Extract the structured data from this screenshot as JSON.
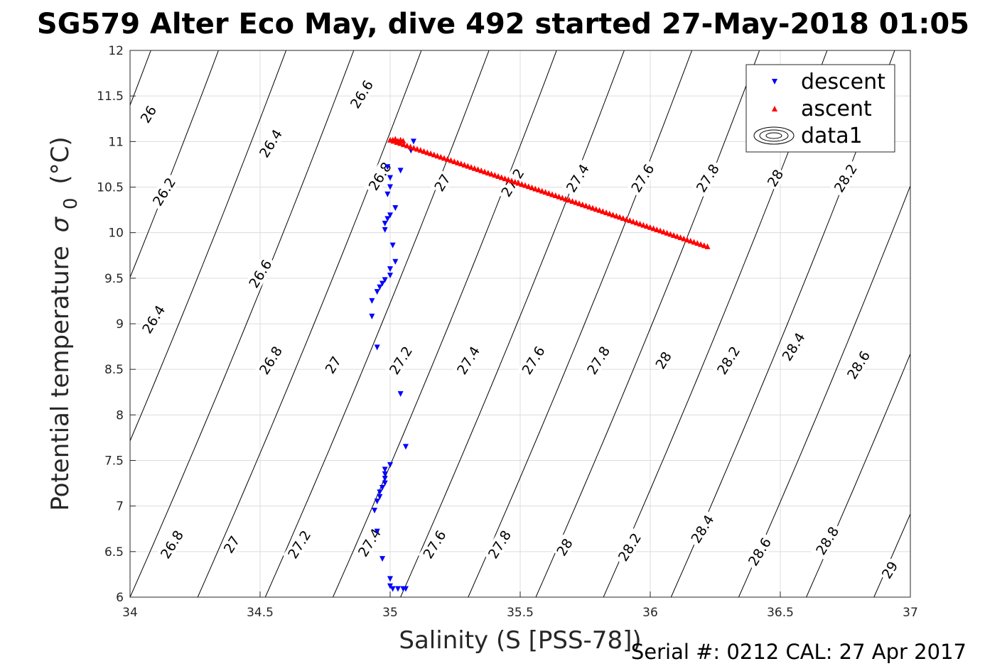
{
  "title": "SG579 Alter Eco May, dive 492 started 27-May-2018 01:05",
  "footer_text": "Serial #: 0212  CAL: 27 Apr 2017",
  "chart_data": {
    "type": "scatter",
    "xlabel": "Salinity (S [PSS-78])",
    "ylabel_main": "Potential temperature",
    "ylabel_sigma": "σ",
    "ylabel_sub": "0",
    "ylabel_unit": "(°C)",
    "xlim": [
      34,
      37
    ],
    "ylim": [
      6,
      12
    ],
    "grid": true,
    "x_ticks": [
      34,
      34.5,
      35,
      35.5,
      36,
      36.5,
      37
    ],
    "x_tick_labels": [
      "34",
      "34.5",
      "35",
      "35.5",
      "36",
      "36.5",
      "37"
    ],
    "y_ticks": [
      6,
      6.5,
      7,
      7.5,
      8,
      8.5,
      9,
      9.5,
      10,
      10.5,
      11,
      11.5,
      12
    ],
    "y_tick_labels": [
      "6",
      "6.5",
      "7",
      "7.5",
      "8",
      "8.5",
      "9",
      "9.5",
      "10",
      "10.5",
      "11",
      "11.5",
      "12"
    ],
    "legend_position": "top-right",
    "series": [
      {
        "name": "descent",
        "marker": "down-triangle",
        "color": "#0000ff",
        "points": [
          [
            35.09,
            11.0
          ],
          [
            35.08,
            10.9
          ],
          [
            35.04,
            10.68
          ],
          [
            34.99,
            10.72
          ],
          [
            35.0,
            10.6
          ],
          [
            35.0,
            10.5
          ],
          [
            34.99,
            10.42
          ],
          [
            35.02,
            10.27
          ],
          [
            35.0,
            10.19
          ],
          [
            34.99,
            10.15
          ],
          [
            34.98,
            10.1
          ],
          [
            34.98,
            10.03
          ],
          [
            35.01,
            9.86
          ],
          [
            35.02,
            9.68
          ],
          [
            35.0,
            9.6
          ],
          [
            35.0,
            9.53
          ],
          [
            34.98,
            9.48
          ],
          [
            34.97,
            9.44
          ],
          [
            34.96,
            9.4
          ],
          [
            34.95,
            9.35
          ],
          [
            34.93,
            9.25
          ],
          [
            34.93,
            9.08
          ],
          [
            34.95,
            8.74
          ],
          [
            35.04,
            8.23
          ],
          [
            35.06,
            7.65
          ],
          [
            35.0,
            7.45
          ],
          [
            34.98,
            7.4
          ],
          [
            34.98,
            7.35
          ],
          [
            34.98,
            7.3
          ],
          [
            34.98,
            7.25
          ],
          [
            34.97,
            7.2
          ],
          [
            34.96,
            7.15
          ],
          [
            34.96,
            7.1
          ],
          [
            34.95,
            7.05
          ],
          [
            34.94,
            6.95
          ],
          [
            34.95,
            6.72
          ],
          [
            34.97,
            6.42
          ],
          [
            35.0,
            6.2
          ],
          [
            35.0,
            6.12
          ],
          [
            35.01,
            6.09
          ],
          [
            35.03,
            6.09
          ],
          [
            35.05,
            6.09
          ],
          [
            35.06,
            6.09
          ]
        ]
      },
      {
        "name": "ascent",
        "marker": "up-triangle",
        "color": "#ff0000",
        "line_from": [
          35.0,
          11.02
        ],
        "line_to": [
          36.22,
          9.85
        ],
        "n_points": 95,
        "extra_points": [
          [
            35.01,
            11.02
          ],
          [
            35.02,
            11.03
          ],
          [
            35.03,
            11.01
          ],
          [
            35.04,
            11.02
          ],
          [
            35.05,
            11.01
          ]
        ]
      },
      {
        "name": "data1",
        "marker": "contour-ellipses",
        "color": "#000000"
      }
    ],
    "contours": {
      "line_color": "#000000",
      "labels": [
        {
          "text": "26",
          "x": 34.07,
          "y": 11.3
        },
        {
          "text": "26.2",
          "x": 34.13,
          "y": 10.45
        },
        {
          "text": "26.4",
          "x": 34.09,
          "y": 9.05
        },
        {
          "text": "26.4",
          "x": 34.54,
          "y": 10.98
        },
        {
          "text": "26.6",
          "x": 34.89,
          "y": 11.52
        },
        {
          "text": "26.6",
          "x": 34.5,
          "y": 9.55
        },
        {
          "text": "26.8",
          "x": 34.96,
          "y": 10.62
        },
        {
          "text": "26.8",
          "x": 34.54,
          "y": 8.6
        },
        {
          "text": "26.8",
          "x": 34.16,
          "y": 6.58
        },
        {
          "text": "27",
          "x": 35.2,
          "y": 10.55
        },
        {
          "text": "27",
          "x": 34.78,
          "y": 8.55
        },
        {
          "text": "27",
          "x": 34.39,
          "y": 6.58
        },
        {
          "text": "27.2",
          "x": 35.47,
          "y": 10.55
        },
        {
          "text": "27.2",
          "x": 35.04,
          "y": 8.6
        },
        {
          "text": "27.2",
          "x": 34.65,
          "y": 6.58
        },
        {
          "text": "27.4",
          "x": 35.72,
          "y": 10.6
        },
        {
          "text": "27.4",
          "x": 35.3,
          "y": 8.6
        },
        {
          "text": "27.4",
          "x": 34.92,
          "y": 6.6
        },
        {
          "text": "27.6",
          "x": 35.97,
          "y": 10.6
        },
        {
          "text": "27.6",
          "x": 35.55,
          "y": 8.6
        },
        {
          "text": "27.6",
          "x": 35.17,
          "y": 6.58
        },
        {
          "text": "27.8",
          "x": 36.22,
          "y": 10.6
        },
        {
          "text": "27.8",
          "x": 35.8,
          "y": 8.6
        },
        {
          "text": "27.8",
          "x": 35.42,
          "y": 6.58
        },
        {
          "text": "28",
          "x": 36.48,
          "y": 10.6
        },
        {
          "text": "28",
          "x": 36.05,
          "y": 8.6
        },
        {
          "text": "28",
          "x": 35.67,
          "y": 6.55
        },
        {
          "text": "28.2",
          "x": 36.75,
          "y": 10.6
        },
        {
          "text": "28.2",
          "x": 36.3,
          "y": 8.6
        },
        {
          "text": "28.2",
          "x": 35.92,
          "y": 6.55
        },
        {
          "text": "28.4",
          "x": 36.55,
          "y": 8.75
        },
        {
          "text": "28.4",
          "x": 36.2,
          "y": 6.75
        },
        {
          "text": "28.6",
          "x": 36.8,
          "y": 8.55
        },
        {
          "text": "28.6",
          "x": 36.42,
          "y": 6.5
        },
        {
          "text": "28.8",
          "x": 36.68,
          "y": 6.62
        },
        {
          "text": "29",
          "x": 36.92,
          "y": 6.3
        }
      ]
    }
  }
}
